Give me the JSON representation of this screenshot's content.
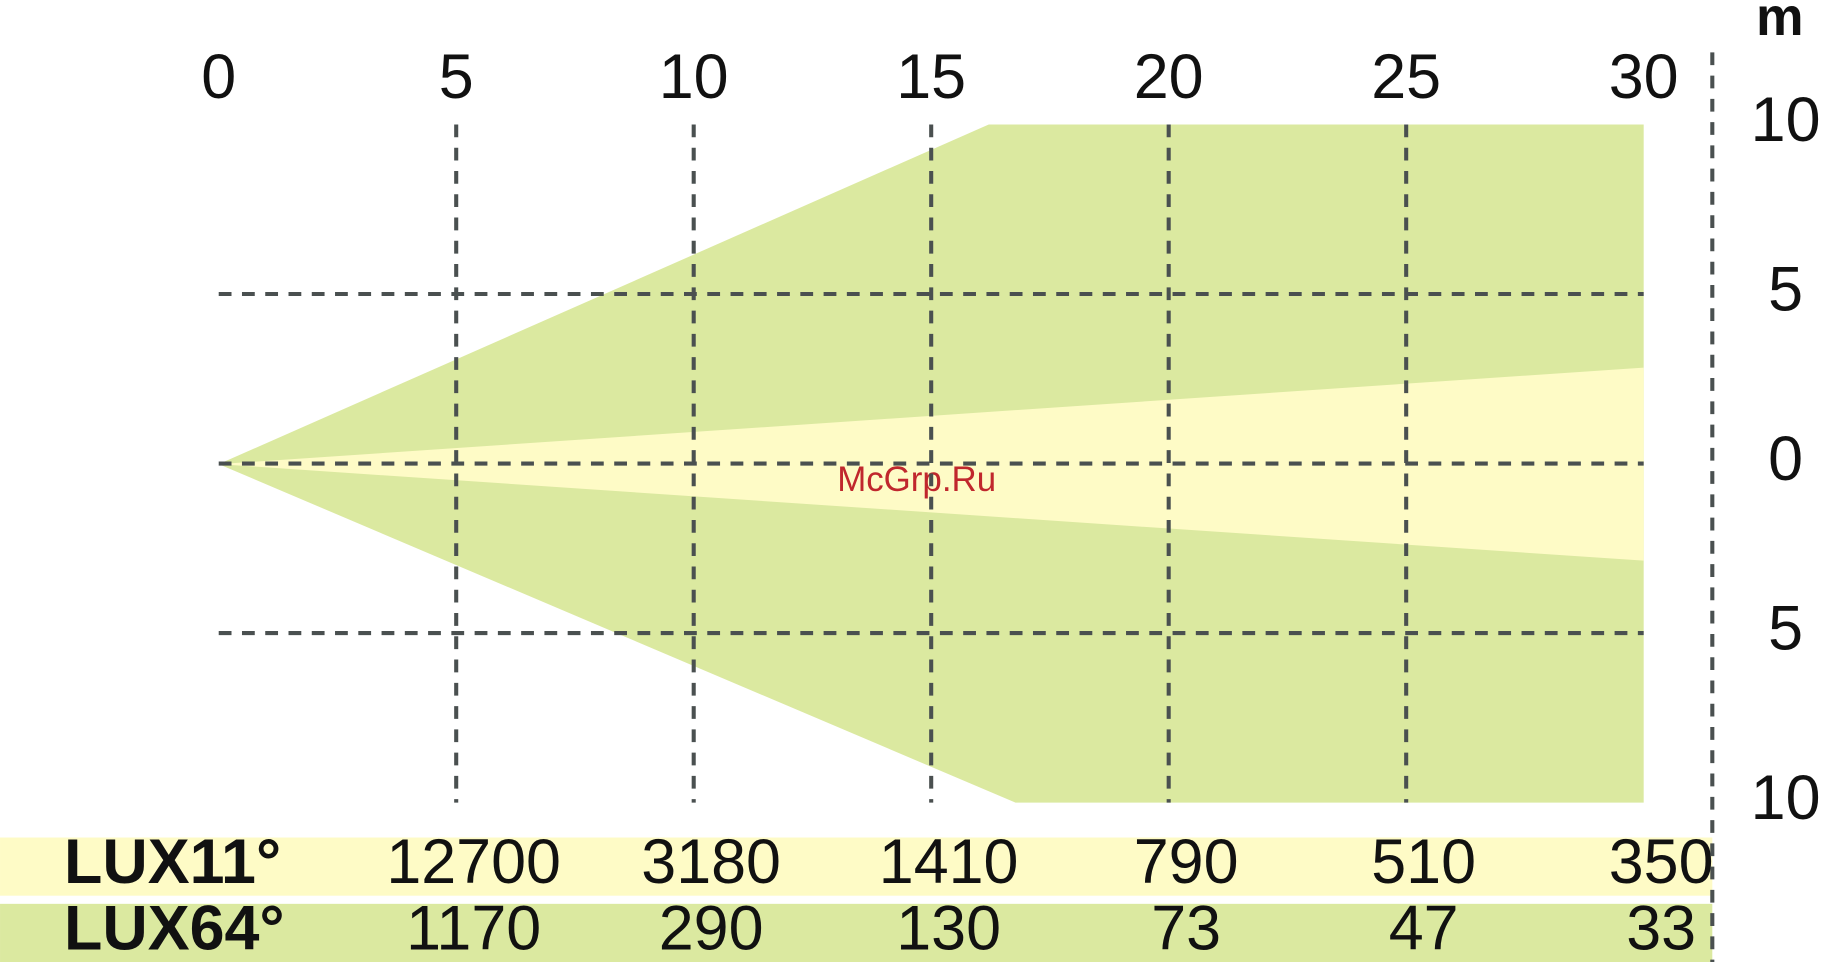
{
  "chart_data": {
    "type": "beam",
    "unit": "m",
    "annotation": "McGrp.Ru",
    "xlim": [
      0,
      30
    ],
    "xticks": [
      0,
      5,
      10,
      15,
      20,
      25,
      30
    ],
    "ylim": [
      -10,
      10
    ],
    "yticks": [
      10,
      5,
      0,
      {
        "value": -5,
        "label": "5"
      },
      {
        "value": -10,
        "label": "10"
      }
    ],
    "grid": true,
    "table": [
      {
        "name": "LUX11°",
        "color": "#fefbc6",
        "values": [
          "12700",
          "3180",
          "1410",
          "790",
          "510",
          "350"
        ]
      },
      {
        "name": "LUX64°",
        "color": "#dbe9a0",
        "values": [
          "1170",
          "290",
          "130",
          "73",
          "47",
          "33"
        ]
      }
    ]
  }
}
